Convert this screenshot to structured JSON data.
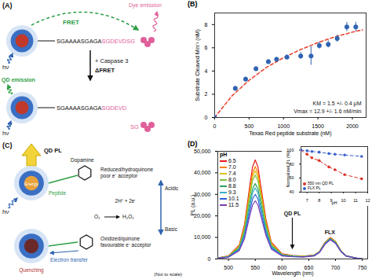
{
  "panel_a": {
    "panel_label": "(A)",
    "light": "hν",
    "fret": "FRET",
    "dye_emission": "Dye emission",
    "linker": "SGAAAASGAGA",
    "substrate": "SGDEVDSG",
    "cleaved_substrate": "SGDEVD",
    "fragment": "SG",
    "enzyme": "+ Caspase 3",
    "delta": "ΔFRET",
    "qd_emission": "QD emission"
  },
  "panel_c": {
    "panel_label": "(C)",
    "light": "hν",
    "qd_pl": "QD PL",
    "energy": "Energy",
    "peptide": "Peptide",
    "dopamine": "Dopamine",
    "reduced": [
      "Reduced/hydroquinone",
      "poor e⁻ acceptor"
    ],
    "protons": "2H⁺ + 2e⁻",
    "oxygen": "O₂",
    "peroxide": "H₂O₂",
    "acidic": "Acidic",
    "basic": "Basic",
    "quenching": "Quenching",
    "electron_transfer": "Electron transfer",
    "oxidized": [
      "Oxidized/quinone",
      "favourable e⁻ acceptor"
    ],
    "note": "(Not to scale)"
  },
  "chart_data": [
    {
      "panel_label": "(B)",
      "type": "scatter",
      "x_label": "Texas Red peptide substrate (nM)",
      "y_label": "Substrate Cleaved Min⁻¹ (nM)",
      "x": [
        0,
        300,
        450,
        600,
        780,
        900,
        1050,
        1250,
        1400,
        1520,
        1650,
        1780,
        1920,
        2050
      ],
      "values": [
        0,
        2.5,
        3.3,
        4.2,
        4.8,
        5.0,
        5.2,
        5.3,
        5.3,
        6.2,
        6.3,
        6.8,
        7.8,
        7.8
      ],
      "errors": [
        0,
        0.2,
        0.2,
        0.2,
        0.2,
        0.2,
        0.2,
        0.3,
        0.8,
        0.3,
        0.3,
        0.3,
        0.4,
        0.4
      ],
      "color": "#2f64b0",
      "marker": "circle",
      "fit": {
        "x": [
          0,
          250,
          500,
          750,
          1000,
          1250,
          1500,
          1750,
          2000,
          2150
        ],
        "values": [
          0,
          1.85,
          3.2,
          4.3,
          5.15,
          5.85,
          6.45,
          6.95,
          7.35,
          7.55
        ],
        "color": "#e8412c",
        "line_style": "dashed"
      },
      "annotations": [
        "KM = 1.5 +/- 0.4 μM",
        "Vmax = 12.9 +/- 1.6 nM/min"
      ],
      "xlim": [
        0,
        2200
      ],
      "xticks": [
        0,
        500,
        1000,
        1500,
        2000
      ],
      "ylim": [
        0,
        9
      ],
      "yticks": [
        0,
        2,
        4,
        6,
        8
      ]
    },
    {
      "panel_label": "(D)",
      "type": "line",
      "x_label": "Wavelength (nm)",
      "y_label": "PL (a.u.)",
      "legend_title": "pH",
      "legend": "top-left",
      "x": [
        480,
        500,
        520,
        530,
        540,
        545,
        550,
        555,
        560,
        570,
        580,
        600,
        620,
        640,
        660,
        670,
        680,
        690,
        700,
        710,
        720,
        740,
        750
      ],
      "series": [
        {
          "name": "6.5",
          "color": "#e41a1c",
          "values": [
            500,
            1400,
            6400,
            16100,
            34500,
            42800,
            46000,
            42800,
            34500,
            18400,
            7800,
            2400,
            1600,
            1300,
            1800,
            3500,
            7600,
            10000,
            8100,
            3800,
            1400,
            300,
            100
          ]
        },
        {
          "name": "7.0",
          "color": "#ff7f00",
          "values": [
            400,
            1300,
            6000,
            15100,
            32300,
            40000,
            43000,
            40000,
            32300,
            17200,
            7300,
            2200,
            1500,
            1200,
            1800,
            3400,
            7500,
            9800,
            8000,
            3800,
            1400,
            300,
            100
          ]
        },
        {
          "name": "7.4",
          "color": "#d9c200",
          "values": [
            400,
            1200,
            5700,
            14400,
            30800,
            38100,
            41000,
            38100,
            30800,
            16400,
            7000,
            2100,
            1400,
            1200,
            1700,
            3400,
            7400,
            9700,
            7900,
            3700,
            1400,
            300,
            100
          ]
        },
        {
          "name": "8.0",
          "color": "#7fbf3f",
          "values": [
            400,
            1200,
            5500,
            13700,
            29300,
            36300,
            39000,
            36300,
            29300,
            15600,
            6600,
            2000,
            1400,
            1100,
            1700,
            3300,
            7300,
            9600,
            7800,
            3700,
            1400,
            300,
            100
          ]
        },
        {
          "name": "8.8",
          "color": "#2ca25f",
          "values": [
            400,
            1100,
            4900,
            12300,
            26300,
            32600,
            35000,
            32600,
            26300,
            14000,
            6000,
            1800,
            1200,
            1100,
            1600,
            3200,
            7100,
            9400,
            7600,
            3600,
            1400,
            300,
            100
          ]
        },
        {
          "name": "9.3",
          "color": "#3ab0c8",
          "values": [
            300,
            1000,
            4600,
            11600,
            24800,
            30700,
            33000,
            30700,
            24800,
            13200,
            5600,
            1700,
            1200,
            1000,
            1600,
            3200,
            7000,
            9200,
            7500,
            3600,
            1300,
            300,
            100
          ]
        },
        {
          "name": "10.1",
          "color": "#2b5fd9",
          "values": [
            300,
            900,
            4200,
            10500,
            22500,
            27900,
            30000,
            27900,
            22500,
            12000,
            5100,
            1600,
            1100,
            1000,
            1500,
            3100,
            6900,
            9100,
            7300,
            3500,
            1300,
            300,
            100
          ]
        },
        {
          "name": "11.5",
          "color": "#7b3fb5",
          "values": [
            300,
            800,
            3800,
            9500,
            20300,
            25100,
            27000,
            25100,
            20300,
            10800,
            4600,
            1400,
            1000,
            900,
            1400,
            3000,
            6700,
            8900,
            7200,
            3400,
            1300,
            300,
            100
          ]
        }
      ],
      "annotations": [
        "QD PL",
        "FLX"
      ],
      "xlim": [
        480,
        760
      ],
      "xticks": [
        500,
        550,
        600,
        650,
        700,
        750
      ],
      "ylim": [
        0,
        50000
      ],
      "yticks": [
        0,
        {
          "value": 10000,
          "label": "10,000"
        },
        {
          "value": 20000,
          "label": "20,000"
        },
        {
          "value": 30000,
          "label": "30,000"
        },
        {
          "value": 40000,
          "label": "40,000"
        },
        {
          "value": 50000,
          "label": "50,000"
        }
      ],
      "inset": {
        "type": "line",
        "x_label": "pH",
        "y_label": "Normalized PL (%)",
        "legend": "bottom-left",
        "x": [
          6.5,
          7.0,
          7.4,
          8.0,
          8.8,
          9.3,
          10.1,
          11.5
        ],
        "series": [
          {
            "name": "550 nm QD PL",
            "color": "#d9342b",
            "marker": "circle",
            "line_style": "dashed",
            "values": [
              100,
              94,
              89,
              85,
              76,
              72,
              65,
              59
            ]
          },
          {
            "name": "FLX PL",
            "color": "#3a5fcd",
            "marker": "circle",
            "line_style": "dashed",
            "values": [
              100,
              99,
              98,
              97,
              95,
              94,
              93,
              91
            ]
          }
        ],
        "xlim": [
          6.5,
          12
        ],
        "xticks": [
          7,
          8,
          9,
          10,
          11,
          12
        ],
        "ylim": [
          40,
          105
        ],
        "yticks": [
          40,
          60,
          80,
          100
        ]
      }
    }
  ]
}
